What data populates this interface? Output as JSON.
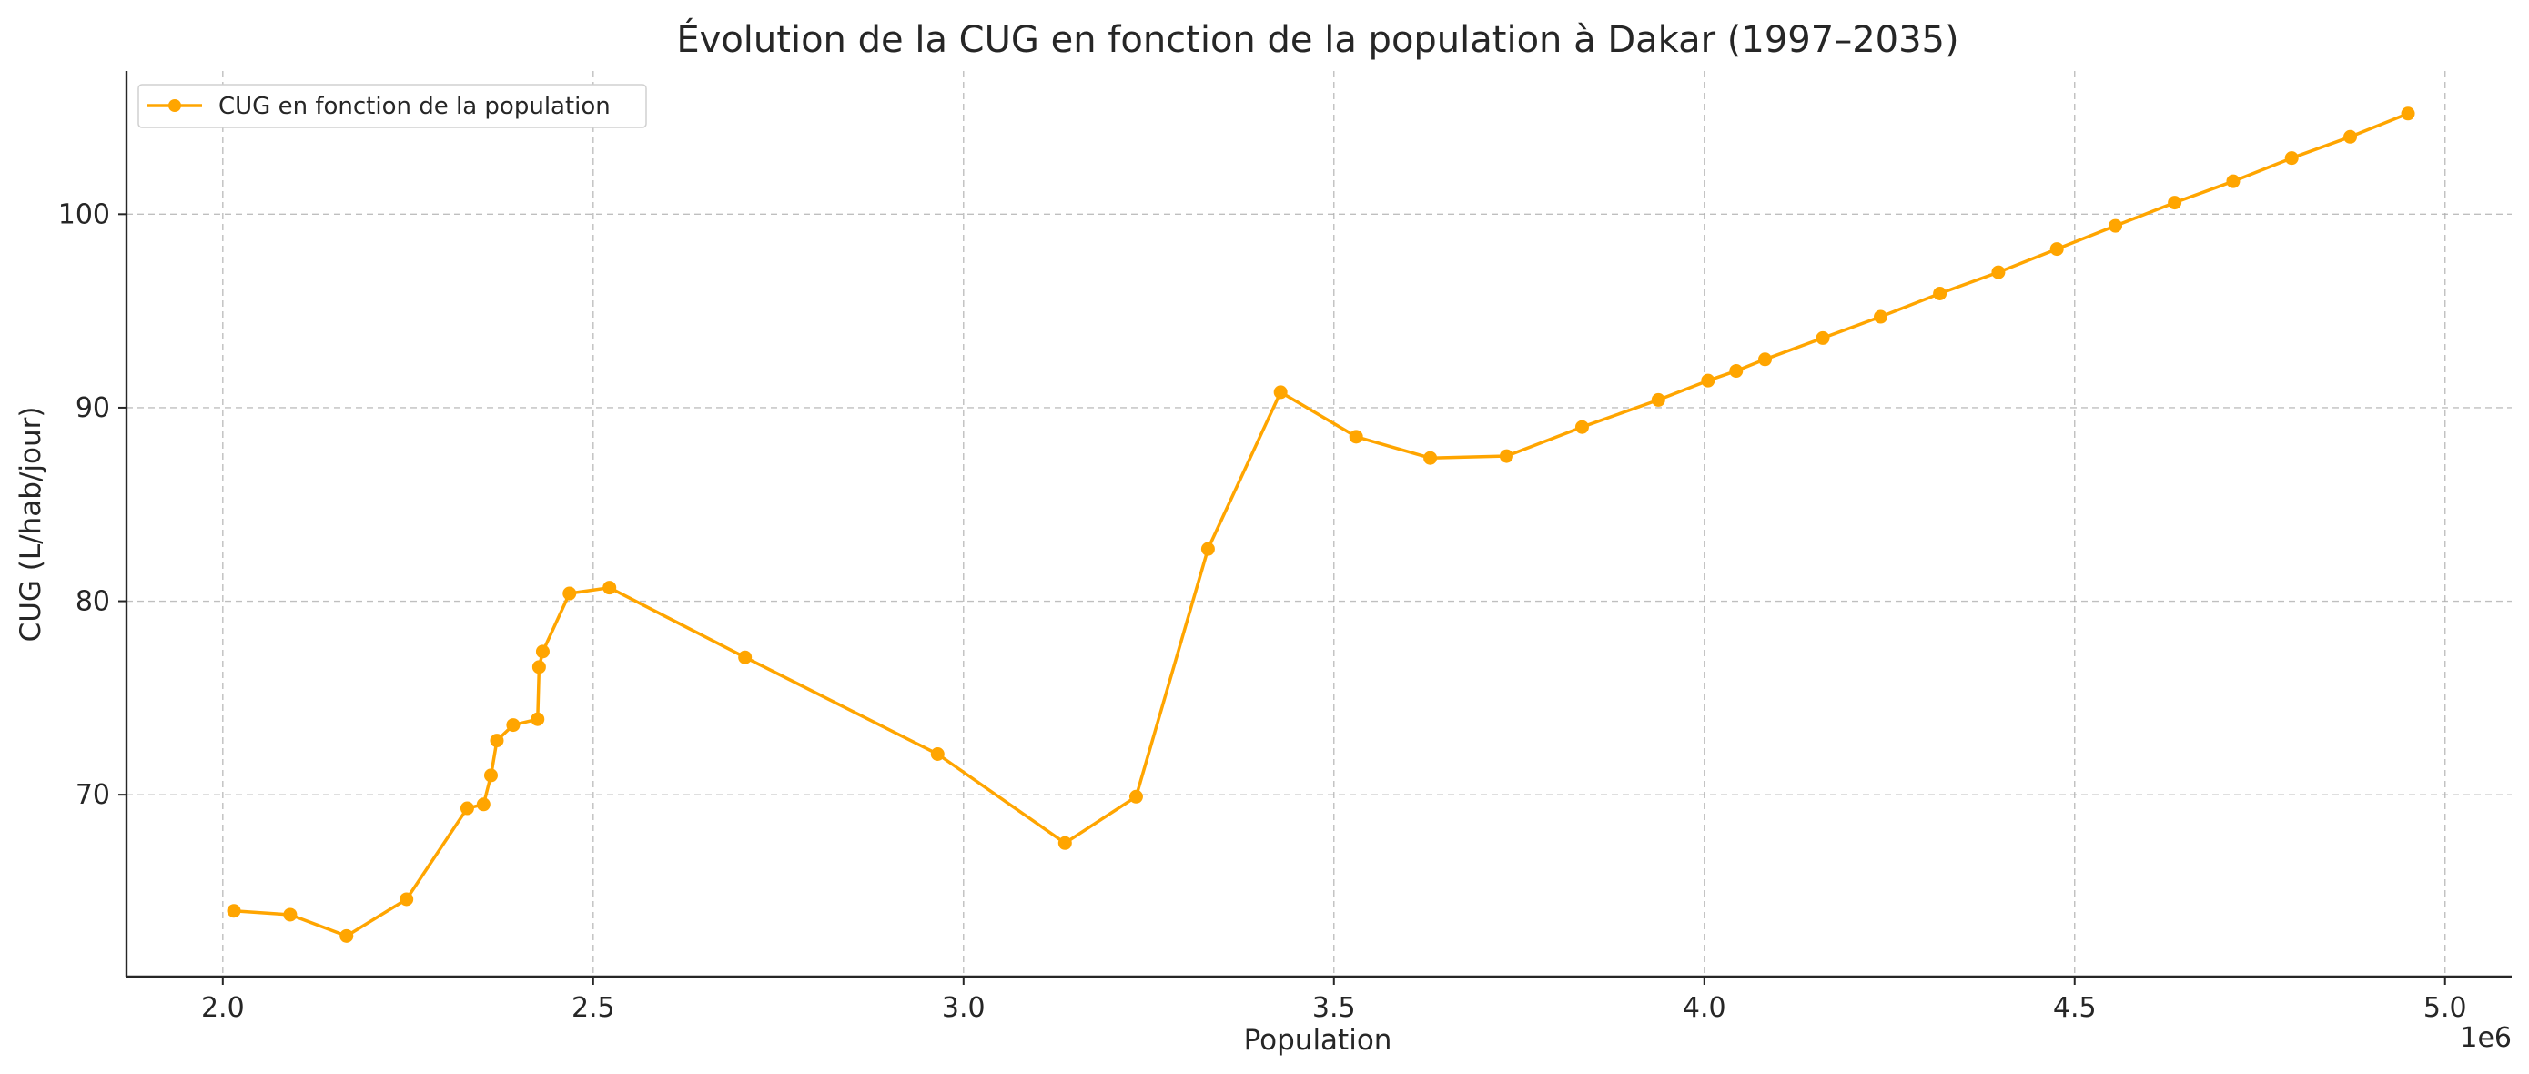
{
  "chart_data": {
    "type": "line",
    "title": "Évolution de la CUG en fonction de la population à Dakar (1997–2035)",
    "xlabel": "Population",
    "ylabel": "CUG (L/hab/jour)",
    "x_offset_label": "1e6",
    "xlim": [
      1870000,
      5090000
    ],
    "ylim": [
      60.6,
      107.4
    ],
    "x_ticks": [
      2000000,
      2500000,
      3000000,
      3500000,
      4000000,
      4500000,
      5000000
    ],
    "x_tick_labels": [
      "2.0",
      "2.5",
      "3.0",
      "3.5",
      "4.0",
      "4.5",
      "5.0"
    ],
    "y_ticks": [
      70,
      80,
      90,
      100
    ],
    "y_tick_labels": [
      "70",
      "80",
      "90",
      "100"
    ],
    "grid": true,
    "legend_position": "top-left",
    "color": "#FFA500",
    "series": [
      {
        "name": "CUG en fonction de la population",
        "points": [
          [
            2015000,
            64.0
          ],
          [
            2091000,
            63.8
          ],
          [
            2167000,
            62.7
          ],
          [
            2248000,
            64.6
          ],
          [
            2330000,
            69.3
          ],
          [
            2352000,
            69.5
          ],
          [
            2362000,
            71.0
          ],
          [
            2370000,
            72.8
          ],
          [
            2392000,
            73.6
          ],
          [
            2425000,
            73.9
          ],
          [
            2427000,
            76.6
          ],
          [
            2432000,
            77.4
          ],
          [
            2468000,
            80.4
          ],
          [
            2522000,
            80.7
          ],
          [
            2705000,
            77.1
          ],
          [
            2965000,
            72.1
          ],
          [
            3137000,
            67.5
          ],
          [
            3233000,
            69.9
          ],
          [
            3330000,
            82.7
          ],
          [
            3428000,
            90.8
          ],
          [
            3530000,
            88.5
          ],
          [
            3630000,
            87.4
          ],
          [
            3733000,
            87.5
          ],
          [
            3835000,
            89.0
          ],
          [
            3938000,
            90.4
          ],
          [
            4005000,
            91.4
          ],
          [
            4043000,
            91.9
          ],
          [
            4082000,
            92.5
          ],
          [
            4160000,
            93.6
          ],
          [
            4238000,
            94.7
          ],
          [
            4318000,
            95.9
          ],
          [
            4397000,
            97.0
          ],
          [
            4476000,
            98.2
          ],
          [
            4555000,
            99.4
          ],
          [
            4635000,
            100.6
          ],
          [
            4714000,
            101.7
          ],
          [
            4793000,
            102.9
          ],
          [
            4872000,
            104.0
          ],
          [
            4950000,
            105.2
          ]
        ]
      }
    ]
  }
}
